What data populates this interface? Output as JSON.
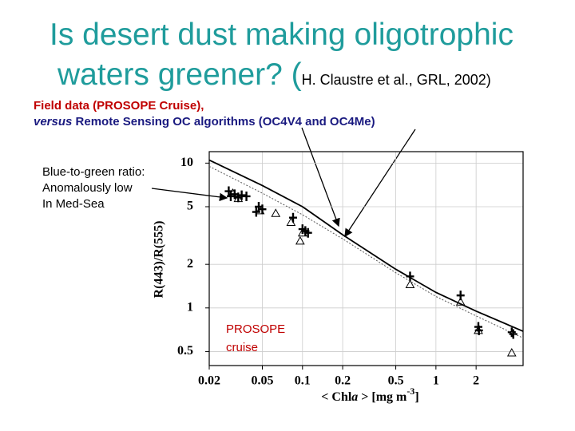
{
  "slide": {
    "title_line1": "Is desert dust making oligotrophic",
    "title_line2": "waters greener? (",
    "citation": "H. Claustre et al., GRL, 2002)",
    "subtitle_line1": "Field data (PROSOPE Cruise),",
    "subtitle_versus": "versus",
    "subtitle_line2": " Remote Sensing OC algorithms  (OC4V4 and OC4Me)"
  },
  "chart_data": {
    "type": "scatter",
    "xlabel": [
      "< Chl",
      "a",
      " > [mg m",
      "-3",
      "]"
    ],
    "ylabel": "R(443)/R(555)",
    "xlim": [
      0.02,
      4.5
    ],
    "ylim": [
      0.4,
      12
    ],
    "xscale": "log",
    "yscale": "log",
    "xticks": [
      0.02,
      0.05,
      0.1,
      0.2,
      0.5,
      1,
      2
    ],
    "yticks": [
      0.5,
      1,
      2,
      5,
      10
    ],
    "grid": true,
    "annotations": [
      [
        "Blue-to-green ratio:",
        "Anomalously low",
        "In Med-Sea"
      ],
      [
        "PROSOPE",
        "cruise"
      ]
    ],
    "series": [
      {
        "style": "plus",
        "color": "#000000",
        "x": [
          0.028,
          0.029,
          0.031,
          0.033,
          0.035,
          0.038,
          0.045,
          0.047,
          0.05,
          0.085,
          0.1,
          0.105,
          0.11,
          0.64,
          1.53,
          2.08,
          2.1,
          3.7,
          3.8
        ],
        "values": [
          6.4,
          5.9,
          6.1,
          5.8,
          6.0,
          5.9,
          4.6,
          5.0,
          4.8,
          4.2,
          3.5,
          3.4,
          3.3,
          1.65,
          1.22,
          0.74,
          0.7,
          0.68,
          0.66
        ]
      },
      {
        "style": "triangle",
        "color": "#000000",
        "x": [
          0.03,
          0.033,
          0.048,
          0.063,
          0.082,
          0.096,
          0.1,
          0.64,
          1.53,
          2.08,
          3.7
        ],
        "values": [
          6.2,
          5.7,
          4.7,
          4.5,
          3.9,
          2.9,
          3.3,
          1.45,
          1.1,
          0.7,
          0.49
        ]
      },
      {
        "style": "solid",
        "color": "#000000",
        "x": [
          0.02,
          0.05,
          0.1,
          0.2,
          0.5,
          1,
          2,
          4.5
        ],
        "values": [
          10.5,
          7.0,
          5.0,
          3.2,
          1.85,
          1.28,
          0.95,
          0.69
        ]
      },
      {
        "style": "dotted",
        "color": "#555555",
        "x": [
          0.02,
          0.05,
          0.1,
          0.2,
          0.5,
          1,
          2,
          4.5
        ],
        "values": [
          9.5,
          6.2,
          4.4,
          3.0,
          1.75,
          1.2,
          0.88,
          0.62
        ]
      }
    ]
  }
}
